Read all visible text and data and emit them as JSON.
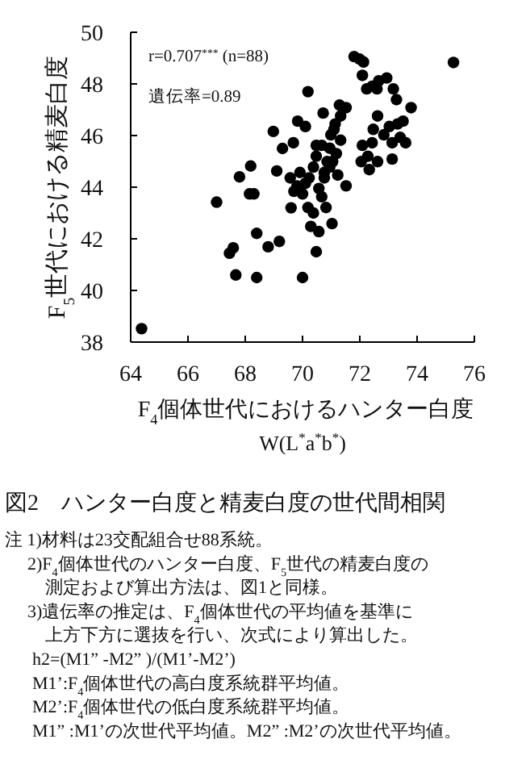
{
  "chart_data": {
    "type": "scatter",
    "title": "図2　ハンター白度と精麦白度の世代間相関",
    "xlabel": "F$_{4}$個体世代におけるハンター白度",
    "subtitle": "W(L$^{*}$a$^{*}$b$^{*}$)",
    "ylabel": "F$_{5}$世代における精麦白度",
    "xlim": [
      64,
      76
    ],
    "xticks": [
      64,
      66,
      68,
      70,
      72,
      74,
      76
    ],
    "ylim": [
      38,
      50
    ],
    "yticks": [
      38,
      40,
      42,
      44,
      46,
      48,
      50
    ],
    "marker": "circle",
    "series": [
      {
        "color": "#000000",
        "x": [
          64.38,
          67.0,
          67.45,
          67.58,
          67.67,
          67.8,
          68.19,
          68.15,
          68.3,
          68.4,
          68.4,
          68.8,
          69.19,
          68.98,
          69.1,
          69.3,
          69.68,
          69.83,
          70.1,
          69.57,
          69.7,
          69.6,
          69.81,
          69.91,
          70.1,
          70.0,
          70.23,
          70.38,
          70.48,
          70.57,
          70.76,
          70.86,
          70.95,
          70.67,
          70.99,
          71.14,
          71.33,
          71.52,
          71.29,
          70.72,
          70.19,
          70.29,
          70.57,
          70.67,
          70.48,
          70.82,
          71.03,
          70.19,
          70.0,
          70.48,
          71.05,
          71.18,
          71.52,
          71.23,
          71.33,
          71.1,
          70.95,
          70.76,
          70.38,
          71.8,
          71.99,
          72.09,
          72.13,
          72.24,
          72.43,
          72.66,
          72.6,
          72.47,
          72.43,
          72.62,
          72.84,
          72.94,
          73.17,
          73.28,
          73.03,
          73.32,
          73.41,
          73.51,
          73.6,
          73.79,
          73.13,
          73.13,
          72.62,
          72.05,
          72.09,
          72.28,
          72.33,
          75.27
        ],
        "values": [
          38.52,
          43.42,
          41.44,
          41.65,
          40.6,
          44.4,
          44.82,
          43.74,
          43.74,
          42.21,
          40.5,
          41.69,
          41.9,
          46.16,
          44.63,
          45.5,
          45.72,
          46.56,
          46.35,
          44.36,
          43.84,
          43.2,
          44.05,
          44.57,
          44.15,
          43.74,
          44.36,
          44.78,
          45.2,
          43.95,
          44.57,
          44.99,
          45.51,
          45.62,
          46.03,
          46.45,
          46.76,
          47.08,
          47.18,
          46.87,
          43.21,
          42.48,
          42.28,
          43.63,
          45.62,
          43.21,
          42.59,
          47.7,
          40.5,
          41.5,
          44.99,
          45.3,
          44.05,
          44.47,
          45.82,
          46.24,
          44.78,
          44.36,
          43.0,
          49.06,
          48.96,
          48.33,
          48.85,
          47.81,
          47.91,
          48.12,
          47.81,
          46.24,
          45.72,
          46.76,
          46.03,
          48.23,
          47.81,
          47.39,
          46.35,
          46.45,
          45.93,
          46.56,
          45.72,
          47.08,
          45.72,
          45.09,
          44.99,
          44.99,
          45.62,
          45.2,
          44.68,
          48.83
        ]
      }
    ],
    "annotations": [
      "r=0.707$^{***}$ (n=88)",
      "遺伝率=0.89",
      "注 1)材料は23交配組合せ88系統。",
      "2)F$_{4}$個体世代のハンター白度、F$_{5}$世代の精麦白度の",
      "測定および算出方法は、図1と同様。",
      "3)遺伝率の推定は、F$_{4}$個体世代の平均値を基準に",
      "上方下方に選抜を行い、次式により算出した。",
      "h2=(M1” -M2” )/(M1’-M2’)",
      "M1’:F$_{4}$個体世代の高白度系統群平均値。",
      "M2’:F$_{4}$個体世代の低白度系統群平均値。",
      "M1” :M1’の次世代平均値。M2” :M2’の次世代平均値。"
    ]
  }
}
